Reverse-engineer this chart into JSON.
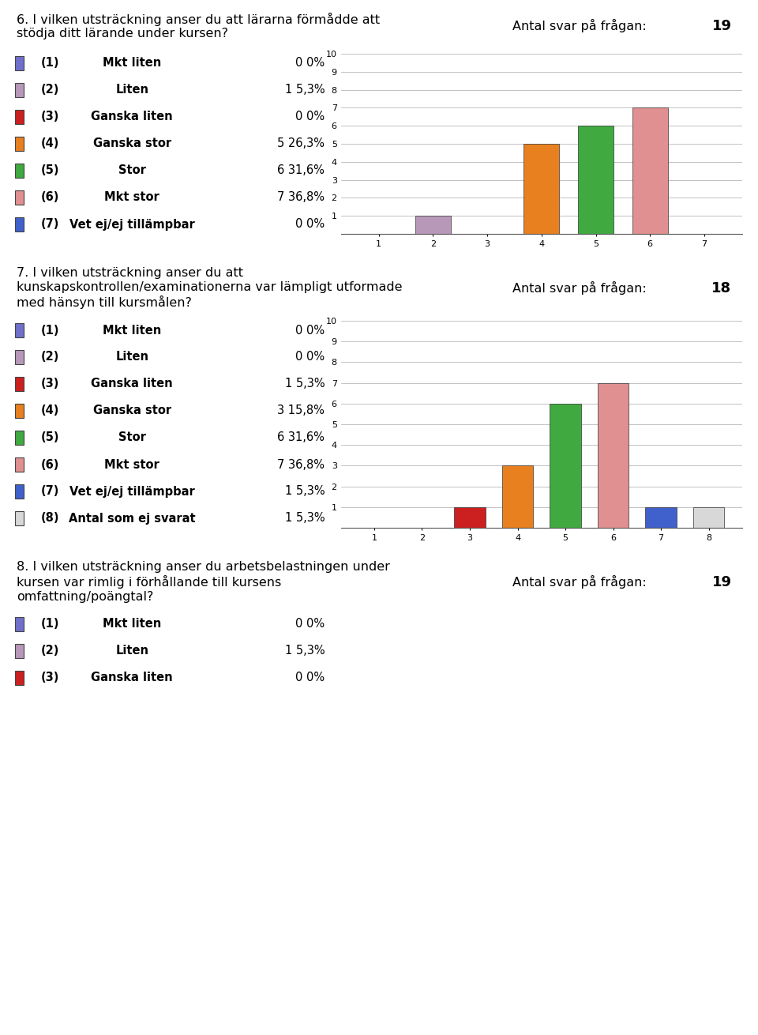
{
  "white": "#ffffff",
  "light_gray": "#e8e8e8",
  "header_bg": "#d0d0d0",
  "sections": [
    {
      "question_text_lines": [
        "6. I vilken utsträckning anser du att lärarna förmådde att",
        "stödja ditt lärande under kursen?"
      ],
      "antal_label": "Antal svar på frågan:",
      "antal_value": "19",
      "items": [
        {
          "num": 1,
          "label": "Mkt liten",
          "count": 0,
          "pct": "0 0%",
          "color": "#7070cc"
        },
        {
          "num": 2,
          "label": "Liten",
          "count": 1,
          "pct": "1 5,3%",
          "color": "#b898b8"
        },
        {
          "num": 3,
          "label": "Ganska liten",
          "count": 0,
          "pct": "0 0%",
          "color": "#cc2020"
        },
        {
          "num": 4,
          "label": "Ganska stor",
          "count": 5,
          "pct": "5 26,3%",
          "color": "#e88020"
        },
        {
          "num": 5,
          "label": "Stor",
          "count": 6,
          "pct": "6 31,6%",
          "color": "#40aa40"
        },
        {
          "num": 6,
          "label": "Mkt stor",
          "count": 7,
          "pct": "7 36,8%",
          "color": "#e09090"
        },
        {
          "num": 7,
          "label": "Vet ej/ej tillämpbar",
          "count": 0,
          "pct": "0 0%",
          "color": "#4060cc"
        }
      ],
      "xticks": [
        1,
        2,
        3,
        4,
        5,
        6,
        7
      ],
      "show_chart": true
    },
    {
      "question_text_lines": [
        "7. I vilken utsträckning anser du att",
        "kunskapskontrollen/examinationerna var lämpligt utformade",
        "med hänsyn till kursmålen?"
      ],
      "antal_label": "Antal svar på frågan:",
      "antal_value": "18",
      "items": [
        {
          "num": 1,
          "label": "Mkt liten",
          "count": 0,
          "pct": "0 0%",
          "color": "#7070cc"
        },
        {
          "num": 2,
          "label": "Liten",
          "count": 0,
          "pct": "0 0%",
          "color": "#b898b8"
        },
        {
          "num": 3,
          "label": "Ganska liten",
          "count": 1,
          "pct": "1 5,3%",
          "color": "#cc2020"
        },
        {
          "num": 4,
          "label": "Ganska stor",
          "count": 3,
          "pct": "3 15,8%",
          "color": "#e88020"
        },
        {
          "num": 5,
          "label": "Stor",
          "count": 6,
          "pct": "6 31,6%",
          "color": "#40aa40"
        },
        {
          "num": 6,
          "label": "Mkt stor",
          "count": 7,
          "pct": "7 36,8%",
          "color": "#e09090"
        },
        {
          "num": 7,
          "label": "Vet ej/ej tillämpbar",
          "count": 1,
          "pct": "1 5,3%",
          "color": "#4060cc"
        },
        {
          "num": 8,
          "label": "Antal som ej svarat",
          "count": 1,
          "pct": "1 5,3%",
          "color": "#d8d8d8"
        }
      ],
      "xticks": [
        1,
        2,
        3,
        4,
        5,
        6,
        7,
        8
      ],
      "show_chart": true
    },
    {
      "question_text_lines": [
        "8. I vilken utsträckning anser du arbetsbelastningen under",
        "kursen var rimlig i förhållande till kursens",
        "omfattning/poängtal?"
      ],
      "antal_label": "Antal svar på frågan:",
      "antal_value": "19",
      "items": [
        {
          "num": 1,
          "label": "Mkt liten",
          "count": 0,
          "pct": "0 0%",
          "color": "#7070cc"
        },
        {
          "num": 2,
          "label": "Liten",
          "count": 1,
          "pct": "1 5,3%",
          "color": "#b898b8"
        },
        {
          "num": 3,
          "label": "Ganska liten",
          "count": 0,
          "pct": "0 0%",
          "color": "#cc2020"
        }
      ],
      "xticks": [],
      "show_chart": false
    }
  ]
}
